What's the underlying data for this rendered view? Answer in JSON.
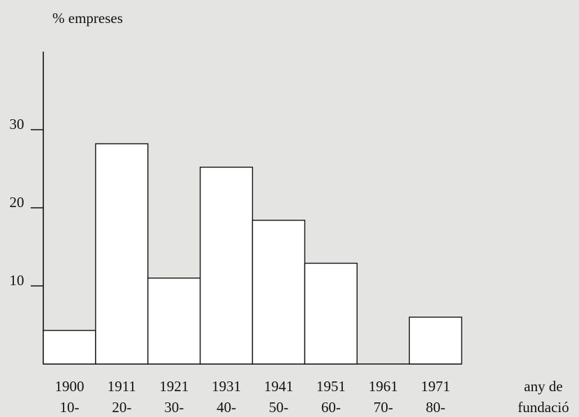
{
  "chart_data": {
    "type": "bar",
    "y_label": "% empreses",
    "x_label": [
      "any de",
      "fundació"
    ],
    "categories": [
      [
        "1900",
        "10-"
      ],
      [
        "1911",
        "20-"
      ],
      [
        "1921",
        "30-"
      ],
      [
        "1931",
        "40-"
      ],
      [
        "1941",
        "50-"
      ],
      [
        "1951",
        "60-"
      ],
      [
        "1961",
        "70-"
      ],
      [
        "1971",
        "80-"
      ]
    ],
    "values": [
      4.3,
      28.2,
      11,
      25.2,
      18.4,
      12.9,
      0,
      6
    ],
    "color": "#ffffff",
    "ylim": [
      0,
      40
    ],
    "yticks": [
      10,
      20,
      30
    ],
    "grid": false
  }
}
